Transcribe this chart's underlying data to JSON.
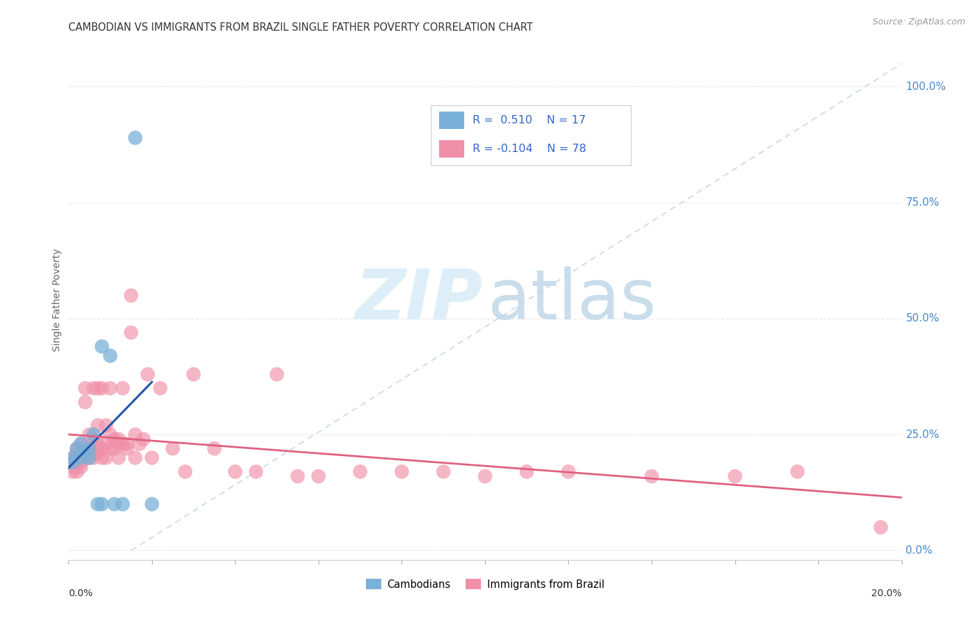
{
  "title": "CAMBODIAN VS IMMIGRANTS FROM BRAZIL SINGLE FATHER POVERTY CORRELATION CHART",
  "source": "Source: ZipAtlas.com",
  "ylabel": "Single Father Poverty",
  "R1": 0.51,
  "N1": 17,
  "R2": -0.104,
  "N2": 78,
  "xlim": [
    0.0,
    0.2
  ],
  "ylim": [
    -0.02,
    1.1
  ],
  "yticks": [
    0.0,
    0.25,
    0.5,
    0.75,
    1.0
  ],
  "ytick_labels": [
    "0.0%",
    "25.0%",
    "50.0%",
    "75.0%",
    "100.0%"
  ],
  "background_color": "#ffffff",
  "grid_color": "#e8e8e8",
  "cambodian_color": "#7ab0d8",
  "brazil_color": "#f090a8",
  "reg_blue": "#2255aa",
  "reg_pink": "#e06080",
  "diag_color": "#b8cfe0",
  "cambodian_x": [
    0.001,
    0.001,
    0.002,
    0.003,
    0.003,
    0.004,
    0.005,
    0.005,
    0.006,
    0.007,
    0.008,
    0.008,
    0.01,
    0.011,
    0.013,
    0.016,
    0.02
  ],
  "cambodian_y": [
    0.2,
    0.19,
    0.22,
    0.2,
    0.23,
    0.21,
    0.2,
    0.22,
    0.25,
    0.1,
    0.44,
    0.1,
    0.42,
    0.1,
    0.1,
    0.89,
    0.1
  ],
  "brazil_x": [
    0.001,
    0.001,
    0.001,
    0.001,
    0.002,
    0.002,
    0.002,
    0.002,
    0.002,
    0.003,
    0.003,
    0.003,
    0.003,
    0.003,
    0.003,
    0.004,
    0.004,
    0.004,
    0.004,
    0.005,
    0.005,
    0.005,
    0.005,
    0.006,
    0.006,
    0.006,
    0.006,
    0.007,
    0.007,
    0.007,
    0.007,
    0.007,
    0.008,
    0.008,
    0.008,
    0.009,
    0.009,
    0.009,
    0.01,
    0.01,
    0.01,
    0.011,
    0.011,
    0.012,
    0.012,
    0.012,
    0.013,
    0.013,
    0.014,
    0.014,
    0.015,
    0.015,
    0.016,
    0.016,
    0.017,
    0.018,
    0.019,
    0.02,
    0.022,
    0.025,
    0.028,
    0.03,
    0.035,
    0.04,
    0.045,
    0.05,
    0.055,
    0.06,
    0.07,
    0.08,
    0.09,
    0.1,
    0.11,
    0.12,
    0.14,
    0.16,
    0.175,
    0.195
  ],
  "brazil_y": [
    0.18,
    0.17,
    0.19,
    0.2,
    0.19,
    0.2,
    0.22,
    0.17,
    0.21,
    0.2,
    0.22,
    0.18,
    0.21,
    0.23,
    0.19,
    0.21,
    0.35,
    0.2,
    0.32,
    0.21,
    0.2,
    0.22,
    0.25,
    0.22,
    0.24,
    0.2,
    0.35,
    0.21,
    0.23,
    0.22,
    0.35,
    0.27,
    0.2,
    0.22,
    0.35,
    0.23,
    0.27,
    0.2,
    0.35,
    0.22,
    0.25,
    0.24,
    0.22,
    0.24,
    0.23,
    0.2,
    0.35,
    0.23,
    0.22,
    0.23,
    0.55,
    0.47,
    0.25,
    0.2,
    0.23,
    0.24,
    0.38,
    0.2,
    0.35,
    0.22,
    0.17,
    0.38,
    0.22,
    0.17,
    0.17,
    0.38,
    0.16,
    0.16,
    0.17,
    0.17,
    0.17,
    0.16,
    0.17,
    0.17,
    0.16,
    0.16,
    0.17,
    0.05
  ]
}
